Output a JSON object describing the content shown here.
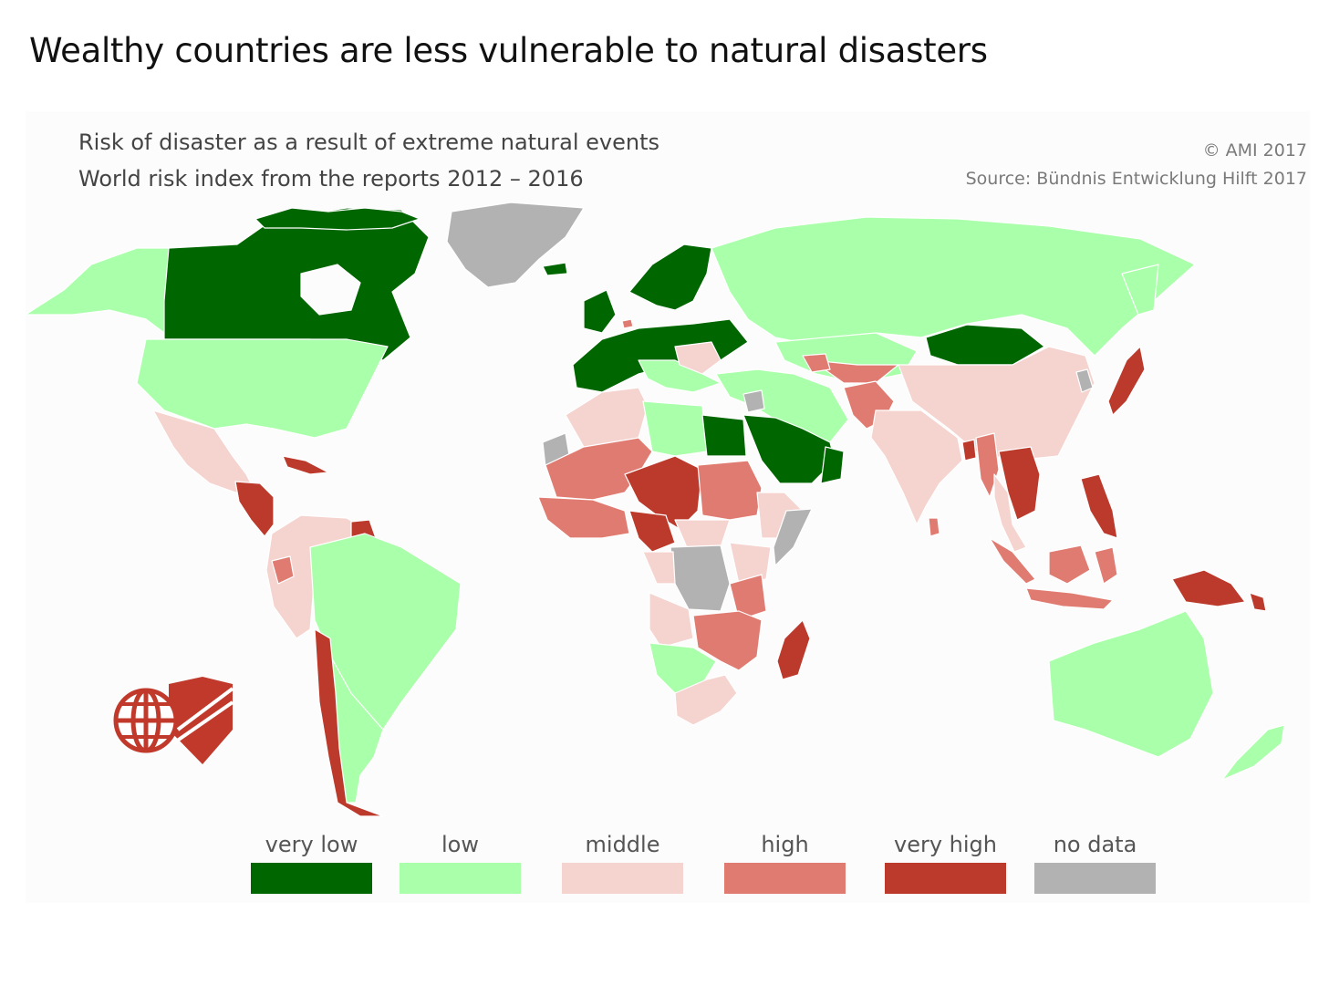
{
  "title": "Wealthy countries are less vulnerable to natural disasters",
  "subtitle_line1": "Risk of disaster as a result of extreme natural events",
  "subtitle_line2": "World risk index from the reports 2012 – 2016",
  "copyright": "© AMI 2017",
  "source": "Source: Bündnis Entwicklung Hilft 2017",
  "logo_icon": "globe-shield-logo",
  "colors": {
    "very_low": "#006600",
    "low": "#aaffaa",
    "middle": "#f5d3cf",
    "high": "#e07b71",
    "very_high": "#bb3a2c",
    "no_data": "#b2b2b2",
    "logo": "#c0392b"
  },
  "legend": [
    {
      "label": "very low",
      "color": "#006600"
    },
    {
      "label": "low",
      "color": "#aaffaa"
    },
    {
      "label": "middle",
      "color": "#f5d3cf"
    },
    {
      "label": "high",
      "color": "#e07b71"
    },
    {
      "label": "very high",
      "color": "#bb3a2c"
    },
    {
      "label": "no data",
      "color": "#b2b2b2"
    }
  ]
}
